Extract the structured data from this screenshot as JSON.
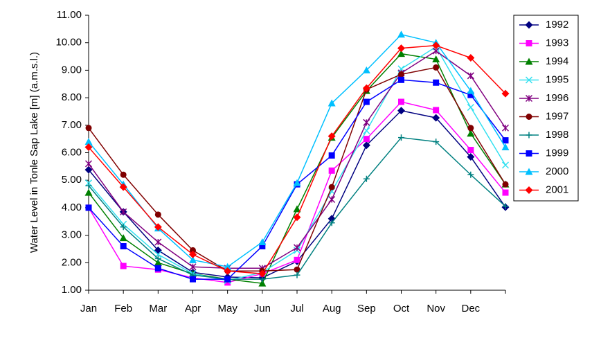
{
  "chart_data": {
    "type": "line",
    "y_label": "Water Level in Tonle Sap Lake [m] (a.m.s.l.)",
    "categories": [
      "Jan",
      "Feb",
      "Mar",
      "Apr",
      "May",
      "Jun",
      "Jul",
      "Aug",
      "Sep",
      "Oct",
      "Nov",
      "Dec",
      null
    ],
    "ylim": [
      1,
      11
    ],
    "yticks": [
      {
        "value": 1,
        "label": "1.00"
      },
      {
        "value": 2,
        "label": "2.00"
      },
      {
        "value": 3,
        "label": "3.00"
      },
      {
        "value": 4,
        "label": "4.00"
      },
      {
        "value": 5,
        "label": "5.00"
      },
      {
        "value": 6,
        "label": "6.00"
      },
      {
        "value": 7,
        "label": "7.00"
      },
      {
        "value": 8,
        "label": "8.00"
      },
      {
        "value": 9,
        "label": "9.00"
      },
      {
        "value": 10,
        "label": "10.00"
      },
      {
        "value": 11,
        "label": "11.00"
      }
    ],
    "grid": false,
    "legend": "right",
    "series": [
      {
        "name": "1992",
        "color": "#000080",
        "marker": "diamond",
        "values": [
          5.38,
          3.85,
          2.45,
          1.65,
          1.48,
          1.45,
          2.05,
          3.6,
          6.27,
          7.53,
          7.27,
          5.85,
          4.02
        ]
      },
      {
        "name": "1993",
        "color": "#ff00ff",
        "marker": "square",
        "values": [
          4.0,
          1.88,
          1.75,
          1.45,
          1.28,
          1.6,
          2.1,
          5.35,
          6.5,
          7.85,
          7.55,
          6.1,
          4.55
        ]
      },
      {
        "name": "1994",
        "color": "#008000",
        "marker": "triangle",
        "values": [
          4.55,
          2.9,
          2.0,
          1.6,
          1.4,
          1.25,
          3.95,
          6.55,
          8.25,
          9.6,
          9.4,
          6.7,
          4.85
        ]
      },
      {
        "name": "1995",
        "color": "#33e0f0",
        "marker": "x",
        "values": [
          4.9,
          3.4,
          2.3,
          1.6,
          1.35,
          1.65,
          2.45,
          4.6,
          6.8,
          9.05,
          9.85,
          7.65,
          5.55
        ]
      },
      {
        "name": "1996",
        "color": "#800080",
        "marker": "star",
        "values": [
          5.6,
          3.85,
          2.75,
          1.85,
          1.8,
          1.8,
          2.55,
          4.3,
          7.1,
          8.9,
          9.7,
          8.8,
          6.9
        ]
      },
      {
        "name": "1997",
        "color": "#800000",
        "marker": "circle",
        "values": [
          6.9,
          5.2,
          3.75,
          2.45,
          1.7,
          1.7,
          1.75,
          4.75,
          8.3,
          8.85,
          9.1,
          6.9,
          4.85
        ]
      },
      {
        "name": "1998",
        "color": "#008080",
        "marker": "plus",
        "values": [
          4.8,
          3.3,
          2.15,
          1.55,
          1.4,
          1.4,
          1.55,
          3.45,
          5.05,
          6.55,
          6.4,
          5.2,
          4.05
        ]
      },
      {
        "name": "1999",
        "color": "#0000ff",
        "marker": "square",
        "values": [
          4.0,
          2.6,
          1.8,
          1.4,
          1.4,
          2.6,
          4.85,
          5.9,
          7.85,
          8.65,
          8.55,
          8.1,
          6.45
        ]
      },
      {
        "name": "2000",
        "color": "#00c0ff",
        "marker": "triangle",
        "values": [
          6.4,
          4.85,
          3.25,
          2.1,
          1.85,
          2.75,
          4.9,
          7.8,
          9.0,
          10.3,
          10.0,
          8.25,
          6.2
        ]
      },
      {
        "name": "2001",
        "color": "#ff0000",
        "marker": "diamond",
        "values": [
          6.2,
          4.75,
          3.3,
          2.3,
          1.7,
          1.6,
          3.65,
          6.6,
          8.35,
          9.8,
          9.9,
          9.45,
          8.15
        ]
      }
    ]
  }
}
